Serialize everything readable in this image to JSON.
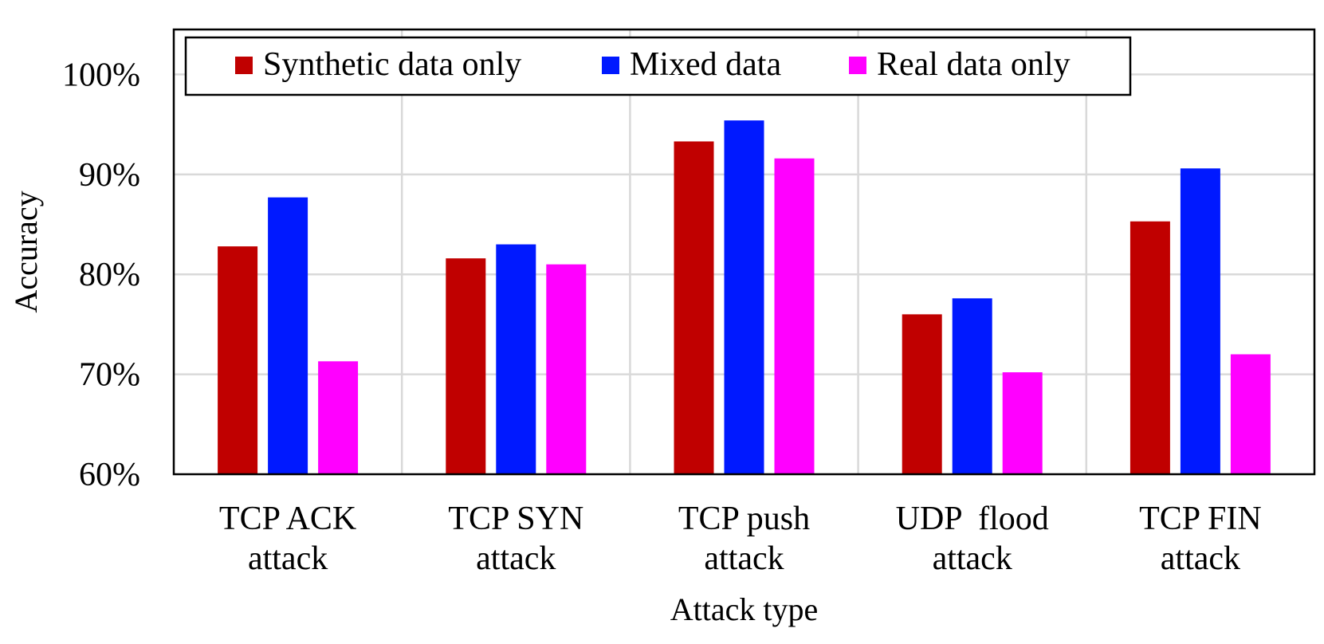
{
  "chart_data": {
    "type": "bar",
    "categories": [
      [
        "TCP ACK",
        "attack"
      ],
      [
        "TCP SYN",
        "attack"
      ],
      [
        "TCP push",
        "attack"
      ],
      [
        "UDP  flood",
        "attack"
      ],
      [
        "TCP FIN",
        "attack"
      ]
    ],
    "series": [
      {
        "name": "Synthetic data only",
        "color": "#c00000",
        "values": [
          82.8,
          81.6,
          93.3,
          76.0,
          85.3
        ]
      },
      {
        "name": "Mixed data",
        "color": "#0019ff",
        "values": [
          87.7,
          83.0,
          95.4,
          77.6,
          90.6
        ]
      },
      {
        "name": "Real data only",
        "color": "#ff00ff",
        "values": [
          71.3,
          81.0,
          91.6,
          70.2,
          72.0
        ]
      }
    ],
    "title": "",
    "xlabel": "Attack type",
    "ylabel": "Accuracy",
    "ylim": [
      60,
      104.5
    ],
    "yticks": [
      60,
      70,
      80,
      90,
      100
    ],
    "ytick_labels": [
      "60%",
      "70%",
      "80%",
      "90%",
      "100%"
    ],
    "grid": true,
    "legend_position": "top"
  }
}
